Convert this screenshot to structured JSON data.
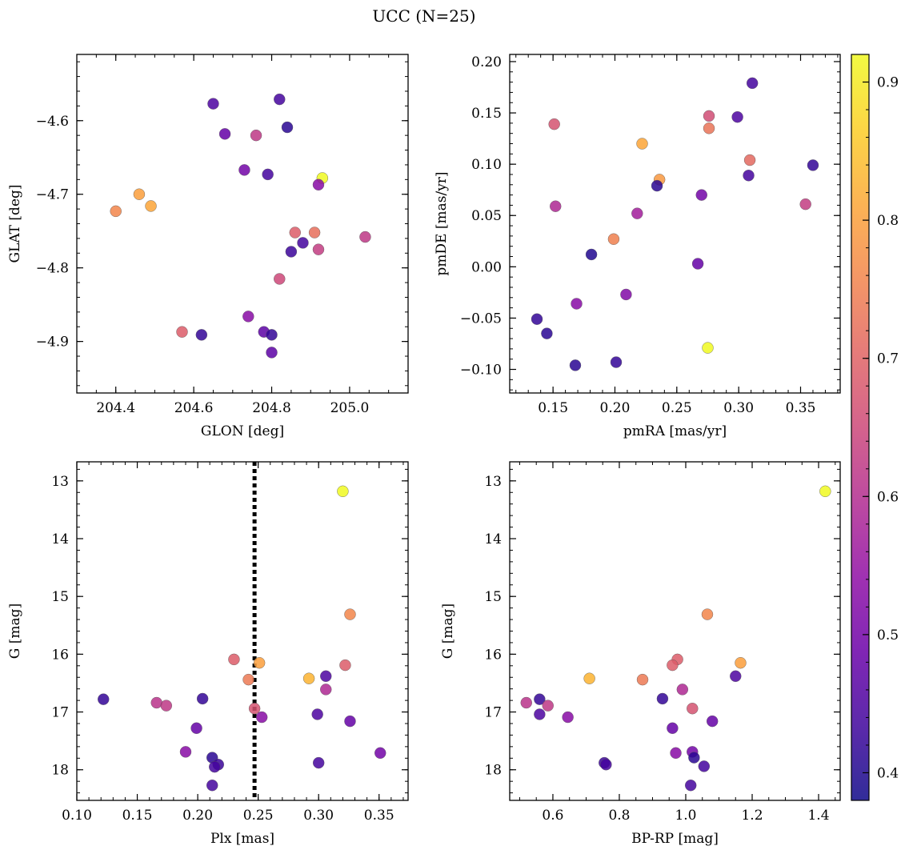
{
  "figure": {
    "title": "UCC (N=25)"
  },
  "colorbar": {
    "range": [
      0.38,
      0.92
    ],
    "ticks": [
      "0.4",
      "0.5",
      "0.6",
      "0.7",
      "0.8",
      "0.9"
    ],
    "tick_values": [
      0.4,
      0.5,
      0.6,
      0.7,
      0.8,
      0.9
    ],
    "colormap": "plasma",
    "stops": [
      "#0d0887",
      "#3f049c",
      "#6a00a8",
      "#8f0da4",
      "#b12a90",
      "#cc4778",
      "#e16462",
      "#f2844b",
      "#fca636",
      "#fcce25",
      "#f0f921"
    ]
  },
  "chart_data": [
    {
      "type": "scatter",
      "title": "",
      "xlabel": "GLON [deg]",
      "ylabel": "GLAT [deg]",
      "xlim": [
        204.3,
        205.15
      ],
      "ylim": [
        -4.97,
        -4.51
      ],
      "xticks": [
        "204.4",
        "204.6",
        "204.8",
        "205.0"
      ],
      "xtick_values": [
        204.4,
        204.6,
        204.8,
        205.0
      ],
      "yticks": [
        "−4.6",
        "−4.7",
        "−4.8",
        "−4.9"
      ],
      "ytick_values": [
        -4.6,
        -4.7,
        -4.8,
        -4.9
      ],
      "x": [
        204.65,
        204.82,
        204.68,
        204.76,
        204.84,
        204.73,
        204.79,
        204.93,
        204.92,
        204.46,
        204.4,
        204.49,
        204.86,
        204.91,
        205.04,
        204.88,
        204.85,
        204.92,
        204.82,
        204.57,
        204.62,
        204.74,
        204.78,
        204.8,
        204.8
      ],
      "y": [
        -4.577,
        -4.571,
        -4.618,
        -4.62,
        -4.609,
        -4.667,
        -4.673,
        -4.678,
        -4.687,
        -4.7,
        -4.723,
        -4.716,
        -4.752,
        -4.752,
        -4.758,
        -4.766,
        -4.778,
        -4.775,
        -4.815,
        -4.887,
        -4.891,
        -4.866,
        -4.887,
        -4.891,
        -4.915
      ],
      "c": [
        0.45,
        0.44,
        0.48,
        0.62,
        0.41,
        0.5,
        0.44,
        0.92,
        0.53,
        0.8,
        0.76,
        0.81,
        0.69,
        0.72,
        0.62,
        0.44,
        0.43,
        0.63,
        0.65,
        0.69,
        0.42,
        0.53,
        0.47,
        0.42,
        0.47
      ]
    },
    {
      "type": "scatter",
      "title": "",
      "xlabel": "pmRA [mas/yr]",
      "ylabel": "pmDE [mas/yr]",
      "xlim": [
        0.115,
        0.382
      ],
      "ylim": [
        -0.123,
        0.207
      ],
      "xticks": [
        "0.15",
        "0.20",
        "0.25",
        "0.30",
        "0.35"
      ],
      "xtick_values": [
        0.15,
        0.2,
        0.25,
        0.3,
        0.35
      ],
      "yticks": [
        "0.20",
        "0.15",
        "0.10",
        "0.05",
        "0.00",
        "−0.05",
        "−0.10"
      ],
      "ytick_values": [
        0.2,
        0.15,
        0.1,
        0.05,
        0.0,
        -0.05,
        -0.1
      ],
      "x": [
        0.311,
        0.276,
        0.299,
        0.151,
        0.276,
        0.222,
        0.309,
        0.36,
        0.308,
        0.236,
        0.234,
        0.27,
        0.152,
        0.218,
        0.354,
        0.199,
        0.181,
        0.267,
        0.209,
        0.169,
        0.137,
        0.145,
        0.201,
        0.168,
        0.275
      ],
      "y": [
        0.179,
        0.147,
        0.146,
        0.139,
        0.135,
        0.12,
        0.104,
        0.099,
        0.089,
        0.085,
        0.079,
        0.07,
        0.059,
        0.052,
        0.061,
        0.027,
        0.012,
        0.003,
        -0.027,
        -0.036,
        -0.051,
        -0.065,
        -0.093,
        -0.096,
        -0.079
      ],
      "c": [
        0.44,
        0.66,
        0.45,
        0.67,
        0.73,
        0.81,
        0.71,
        0.42,
        0.44,
        0.79,
        0.41,
        0.5,
        0.59,
        0.57,
        0.63,
        0.75,
        0.4,
        0.48,
        0.52,
        0.53,
        0.42,
        0.41,
        0.42,
        0.41,
        0.92
      ]
    },
    {
      "type": "scatter",
      "title": "",
      "xlabel": "Plx [mas]",
      "ylabel": "G [mag]",
      "xlim": [
        0.1,
        0.374
      ],
      "ylim": [
        18.53,
        12.67
      ],
      "xticks": [
        "0.10",
        "0.15",
        "0.20",
        "0.25",
        "0.30",
        "0.35"
      ],
      "xtick_values": [
        0.1,
        0.15,
        0.2,
        0.25,
        0.3,
        0.35
      ],
      "yticks": [
        "13",
        "14",
        "15",
        "16",
        "17",
        "18"
      ],
      "ytick_values": [
        13,
        14,
        15,
        16,
        17,
        18
      ],
      "vline": {
        "x": 0.247,
        "style": "dotted"
      },
      "x": [
        0.32,
        0.326,
        0.23,
        0.251,
        0.322,
        0.242,
        0.292,
        0.306,
        0.306,
        0.122,
        0.166,
        0.174,
        0.204,
        0.247,
        0.299,
        0.253,
        0.326,
        0.199,
        0.19,
        0.351,
        0.212,
        0.3,
        0.217,
        0.214,
        0.212
      ],
      "y": [
        13.18,
        15.31,
        16.09,
        16.15,
        16.19,
        16.44,
        16.42,
        16.38,
        16.61,
        16.78,
        16.84,
        16.89,
        16.77,
        16.94,
        17.04,
        17.09,
        17.16,
        17.28,
        17.69,
        17.71,
        17.79,
        17.88,
        17.91,
        17.95,
        18.27
      ],
      "c": [
        0.92,
        0.76,
        0.69,
        0.8,
        0.69,
        0.74,
        0.83,
        0.45,
        0.59,
        0.42,
        0.61,
        0.62,
        0.42,
        0.67,
        0.45,
        0.53,
        0.48,
        0.48,
        0.53,
        0.5,
        0.41,
        0.44,
        0.43,
        0.44,
        0.44
      ]
    },
    {
      "type": "scatter",
      "title": "",
      "xlabel": "BP-RP [mag]",
      "ylabel": "G [mag]",
      "xlim": [
        0.47,
        1.465
      ],
      "ylim": [
        18.53,
        12.67
      ],
      "xticks": [
        "0.6",
        "0.8",
        "1.0",
        "1.2",
        "1.4"
      ],
      "xtick_values": [
        0.6,
        0.8,
        1.0,
        1.2,
        1.4
      ],
      "yticks": [
        "13",
        "14",
        "15",
        "16",
        "17",
        "18"
      ],
      "ytick_values": [
        13,
        14,
        15,
        16,
        17,
        18
      ],
      "x": [
        1.42,
        1.065,
        1.165,
        0.975,
        0.96,
        1.15,
        0.71,
        0.87,
        0.99,
        0.52,
        0.56,
        0.56,
        0.585,
        0.645,
        1.02,
        0.93,
        1.08,
        0.96,
        0.97,
        1.02,
        1.025,
        0.755,
        1.055,
        1.015,
        0.76
      ],
      "y": [
        13.18,
        15.31,
        16.15,
        16.09,
        16.19,
        16.38,
        16.42,
        16.44,
        16.61,
        16.84,
        16.78,
        17.04,
        16.89,
        17.09,
        16.94,
        16.77,
        17.16,
        17.28,
        17.71,
        17.69,
        17.79,
        17.88,
        17.94,
        18.27,
        17.91
      ],
      "c": [
        0.92,
        0.76,
        0.8,
        0.69,
        0.69,
        0.45,
        0.83,
        0.74,
        0.59,
        0.61,
        0.42,
        0.45,
        0.62,
        0.53,
        0.67,
        0.42,
        0.48,
        0.48,
        0.53,
        0.5,
        0.41,
        0.43,
        0.44,
        0.44,
        0.44
      ]
    }
  ]
}
